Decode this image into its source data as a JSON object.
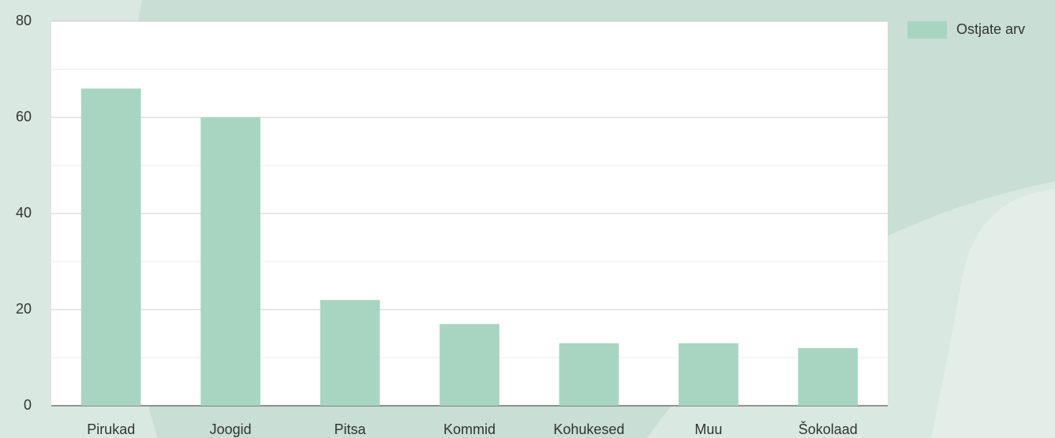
{
  "chart_data": {
    "type": "bar",
    "categories": [
      "Pirukad",
      "Joogid",
      "Pitsa",
      "Kommid",
      "Kohukesed",
      "Muu",
      "Šokolaad"
    ],
    "series": [
      {
        "name": "Ostjate arv",
        "color": "#a8d5c2",
        "values": [
          66,
          60,
          22,
          17,
          13,
          13,
          12
        ]
      }
    ],
    "ylim": [
      0,
      80
    ],
    "yticks": [
      0,
      20,
      40,
      60,
      80
    ],
    "grid": true,
    "minor_grid": true,
    "legend": "top-right"
  }
}
